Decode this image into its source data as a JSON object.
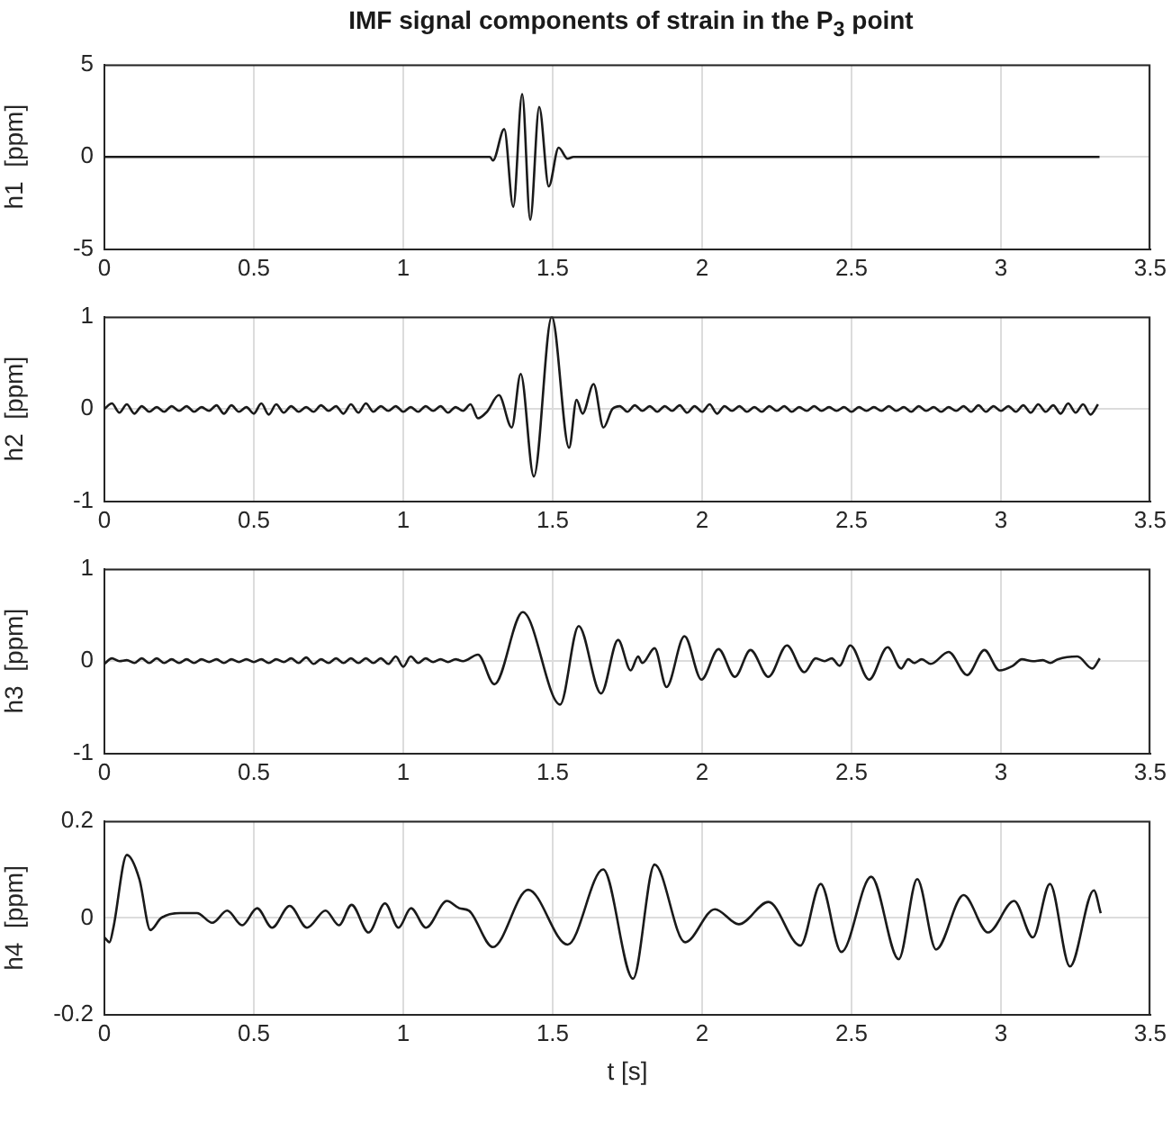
{
  "chart_data": [
    {
      "type": "line",
      "title": "IMF signal components of strain in the P$_{3}$ point",
      "ylabel": "h1  [ppm]",
      "xlim": [
        0,
        3.5
      ],
      "xticks": [
        0,
        0.5,
        1,
        1.5,
        2,
        2.5,
        3,
        3.5
      ],
      "ylim": [
        -5,
        5
      ],
      "yticks": [
        -5,
        0,
        5
      ],
      "grid": true,
      "marker": "none",
      "line_style": "solid",
      "x": [
        0,
        1.29,
        1.3,
        1.338,
        1.368,
        1.398,
        1.425,
        1.455,
        1.487,
        1.52,
        1.55,
        1.57,
        3.33
      ],
      "series": [
        {
          "color": "#1a1a1a",
          "values": [
            0,
            0,
            -0.2,
            1.5,
            -2.7,
            3.4,
            -3.4,
            2.7,
            -1.6,
            0.5,
            -0.1,
            0,
            0
          ]
        }
      ]
    },
    {
      "type": "line",
      "ylabel": "h2  [ppm]",
      "xlim": [
        0,
        3.5
      ],
      "xticks": [
        0,
        0.5,
        1,
        1.5,
        2,
        2.5,
        3,
        3.5
      ],
      "ylim": [
        -1,
        1
      ],
      "yticks": [
        -1,
        0,
        1
      ],
      "grid": true,
      "marker": "none",
      "line_style": "solid",
      "x": [
        0,
        0.025,
        0.05,
        0.075,
        0.1,
        0.125,
        0.15,
        0.175,
        0.2,
        0.225,
        0.25,
        0.275,
        0.3,
        0.325,
        0.35,
        0.375,
        0.4,
        0.425,
        0.45,
        0.475,
        0.5,
        0.525,
        0.55,
        0.575,
        0.6,
        0.625,
        0.65,
        0.675,
        0.7,
        0.725,
        0.75,
        0.775,
        0.8,
        0.825,
        0.85,
        0.875,
        0.9,
        0.925,
        0.95,
        0.975,
        1,
        1.025,
        1.05,
        1.075,
        1.1,
        1.125,
        1.15,
        1.175,
        1.2,
        1.225,
        1.25,
        1.28,
        1.32,
        1.363,
        1.393,
        1.437,
        1.497,
        1.555,
        1.58,
        1.6,
        1.637,
        1.67,
        1.7,
        1.725,
        1.75,
        1.775,
        1.8,
        1.825,
        1.85,
        1.875,
        1.9,
        1.925,
        1.95,
        1.975,
        2,
        2.025,
        2.05,
        2.075,
        2.1,
        2.125,
        2.15,
        2.175,
        2.2,
        2.225,
        2.25,
        2.275,
        2.3,
        2.325,
        2.35,
        2.375,
        2.4,
        2.425,
        2.45,
        2.475,
        2.5,
        2.525,
        2.55,
        2.575,
        2.6,
        2.625,
        2.65,
        2.675,
        2.7,
        2.725,
        2.75,
        2.775,
        2.8,
        2.825,
        2.85,
        2.875,
        2.9,
        2.925,
        2.95,
        2.975,
        3,
        3.025,
        3.05,
        3.075,
        3.1,
        3.125,
        3.15,
        3.175,
        3.2,
        3.225,
        3.25,
        3.275,
        3.3,
        3.325
      ],
      "series": [
        {
          "color": "#1a1a1a",
          "values": [
            0,
            0.06,
            -0.04,
            0.05,
            -0.05,
            0.03,
            -0.03,
            0.02,
            -0.03,
            0.03,
            -0.02,
            0.03,
            -0.03,
            0.02,
            -0.02,
            0.04,
            -0.05,
            0.04,
            -0.03,
            0.02,
            -0.05,
            0.06,
            -0.06,
            0.05,
            -0.04,
            0.03,
            -0.03,
            0.02,
            -0.03,
            0.04,
            -0.02,
            0.03,
            -0.05,
            0.05,
            -0.04,
            0.06,
            -0.03,
            0.03,
            -0.02,
            0.03,
            -0.03,
            0.02,
            -0.03,
            0.03,
            -0.02,
            0.03,
            -0.04,
            0.02,
            -0.02,
            0.05,
            -0.1,
            -0.03,
            0.15,
            -0.2,
            0.38,
            -0.73,
            1,
            -0.42,
            0.1,
            -0.05,
            0.27,
            -0.2,
            0,
            0.03,
            -0.03,
            0.04,
            -0.02,
            0.03,
            -0.03,
            0.03,
            -0.02,
            0.04,
            -0.04,
            0.03,
            -0.03,
            0.05,
            -0.05,
            0.03,
            -0.02,
            0.03,
            -0.03,
            0.02,
            -0.03,
            0.03,
            -0.02,
            0.03,
            -0.03,
            0.02,
            -0.02,
            0.03,
            -0.02,
            0.02,
            -0.02,
            0.02,
            -0.03,
            0.02,
            -0.02,
            0.02,
            -0.02,
            0.03,
            -0.02,
            0.02,
            -0.03,
            0.03,
            -0.02,
            0.02,
            -0.03,
            0.02,
            -0.02,
            0.03,
            -0.03,
            0.04,
            -0.03,
            0.03,
            -0.02,
            0.03,
            -0.03,
            0.04,
            -0.04,
            0.05,
            -0.03,
            0.04,
            -0.05,
            0.06,
            -0.04,
            0.05,
            -0.06,
            0.05
          ]
        }
      ]
    },
    {
      "type": "line",
      "ylabel": "h3  [ppm]",
      "xlim": [
        0,
        3.5
      ],
      "xticks": [
        0,
        0.5,
        1,
        1.5,
        2,
        2.5,
        3,
        3.5
      ],
      "ylim": [
        -1,
        1
      ],
      "yticks": [
        -1,
        0,
        1
      ],
      "grid": true,
      "marker": "none",
      "line_style": "solid",
      "x": [
        0,
        0.025,
        0.05,
        0.075,
        0.1,
        0.125,
        0.15,
        0.175,
        0.2,
        0.225,
        0.25,
        0.275,
        0.3,
        0.325,
        0.35,
        0.375,
        0.4,
        0.425,
        0.45,
        0.475,
        0.5,
        0.525,
        0.55,
        0.575,
        0.6,
        0.625,
        0.65,
        0.675,
        0.7,
        0.725,
        0.75,
        0.775,
        0.8,
        0.825,
        0.85,
        0.875,
        0.9,
        0.925,
        0.95,
        0.975,
        1,
        1.025,
        1.05,
        1.075,
        1.1,
        1.125,
        1.15,
        1.175,
        1.2,
        1.25,
        1.305,
        1.4,
        1.525,
        1.587,
        1.662,
        1.719,
        1.761,
        1.786,
        1.8,
        1.841,
        1.881,
        1.941,
        1.998,
        2.055,
        2.11,
        2.162,
        2.222,
        2.284,
        2.342,
        2.38,
        2.41,
        2.434,
        2.46,
        2.496,
        2.559,
        2.621,
        2.666,
        2.69,
        2.71,
        2.735,
        2.765,
        2.825,
        2.887,
        2.945,
        2.995,
        3.04,
        3.07,
        3.107,
        3.14,
        3.165,
        3.19,
        3.256,
        3.306,
        3.331
      ],
      "series": [
        {
          "color": "#1a1a1a",
          "values": [
            -0.03,
            0.03,
            0,
            0.01,
            -0.02,
            0.03,
            -0.02,
            0.03,
            -0.02,
            0.02,
            -0.02,
            0.02,
            -0.02,
            0.02,
            -0.01,
            0.02,
            -0.02,
            0.02,
            -0.01,
            0.02,
            -0.01,
            0.02,
            -0.02,
            0.02,
            -0.01,
            0.03,
            -0.02,
            0.04,
            -0.03,
            0.02,
            -0.02,
            0.03,
            -0.02,
            0.03,
            -0.02,
            0.03,
            -0.02,
            0.03,
            -0.03,
            0.05,
            -0.06,
            0.05,
            -0.02,
            0.03,
            -0.01,
            0.02,
            -0.01,
            0.02,
            0,
            0.07,
            -0.25,
            0.53,
            -0.47,
            0.38,
            -0.35,
            0.23,
            -0.1,
            0.05,
            -0.02,
            0.14,
            -0.28,
            0.27,
            -0.2,
            0.13,
            -0.17,
            0.12,
            -0.17,
            0.17,
            -0.12,
            0.03,
            0,
            0.03,
            -0.05,
            0.17,
            -0.2,
            0.15,
            -0.08,
            0.02,
            -0.02,
            0.02,
            -0.03,
            0.1,
            -0.15,
            0.12,
            -0.1,
            -0.05,
            0.02,
            0,
            0.01,
            -0.02,
            0.02,
            0.05,
            -0.08,
            0.03
          ]
        }
      ]
    },
    {
      "type": "line",
      "ylabel": "h4  [ppm]",
      "xlabel": "t [s]",
      "xlim": [
        0,
        3.5
      ],
      "xticks": [
        0,
        0.5,
        1,
        1.5,
        2,
        2.5,
        3,
        3.5
      ],
      "ylim": [
        -0.2,
        0.2
      ],
      "yticks": [
        -0.2,
        0,
        0.2
      ],
      "grid": true,
      "marker": "none",
      "line_style": "solid",
      "x": [
        0,
        0.017,
        0.03,
        0.075,
        0.117,
        0.154,
        0.19,
        0.254,
        0.31,
        0.361,
        0.411,
        0.461,
        0.511,
        0.561,
        0.62,
        0.678,
        0.74,
        0.785,
        0.827,
        0.884,
        0.939,
        0.984,
        1.026,
        1.076,
        1.146,
        1.188,
        1.22,
        1.3,
        1.418,
        1.55,
        1.669,
        1.769,
        1.841,
        1.943,
        2.043,
        2.123,
        2.222,
        2.329,
        2.397,
        2.466,
        2.566,
        2.658,
        2.72,
        2.783,
        2.875,
        2.957,
        3.044,
        3.107,
        3.164,
        3.231,
        3.311,
        3.334
      ],
      "series": [
        {
          "color": "#1a1a1a",
          "values": [
            -0.04,
            -0.05,
            -0.02,
            0.13,
            0.08,
            -0.025,
            0,
            0.01,
            0.01,
            -0.01,
            0.015,
            -0.015,
            0.02,
            -0.02,
            0.025,
            -0.02,
            0.015,
            -0.015,
            0.027,
            -0.03,
            0.03,
            -0.02,
            0.02,
            -0.02,
            0.035,
            0.02,
            0.015,
            -0.06,
            0.058,
            -0.055,
            0.1,
            -0.125,
            0.11,
            -0.05,
            0.018,
            -0.013,
            0.033,
            -0.057,
            0.07,
            -0.07,
            0.085,
            -0.085,
            0.08,
            -0.065,
            0.047,
            -0.03,
            0.035,
            -0.04,
            0.07,
            -0.1,
            0.057,
            0.01
          ]
        }
      ]
    }
  ]
}
